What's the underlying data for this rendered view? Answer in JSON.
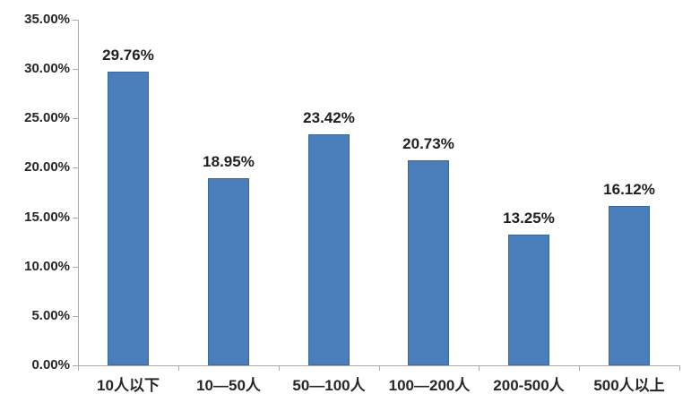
{
  "chart_data": {
    "type": "bar",
    "title": "",
    "xlabel": "",
    "ylabel": "",
    "categories": [
      "10人以下",
      "10—50人",
      "50—100人",
      "100—200人",
      "200-500人",
      "500人以上"
    ],
    "values": [
      29.76,
      18.95,
      23.42,
      20.73,
      13.25,
      16.12
    ],
    "data_labels": [
      "29.76%",
      "18.95%",
      "23.42%",
      "20.73%",
      "13.25%",
      "16.12%"
    ],
    "ylim": [
      0,
      35
    ],
    "ytick_step": 5,
    "ytick_labels": [
      "0.00%",
      "5.00%",
      "10.00%",
      "15.00%",
      "20.00%",
      "25.00%",
      "30.00%",
      "35.00%"
    ],
    "grid": false,
    "legend": false,
    "colors": {
      "bar_fill": "#4a7ebb",
      "bar_border": "#3a679e",
      "axis": "#ababab",
      "text": "#262626"
    }
  }
}
